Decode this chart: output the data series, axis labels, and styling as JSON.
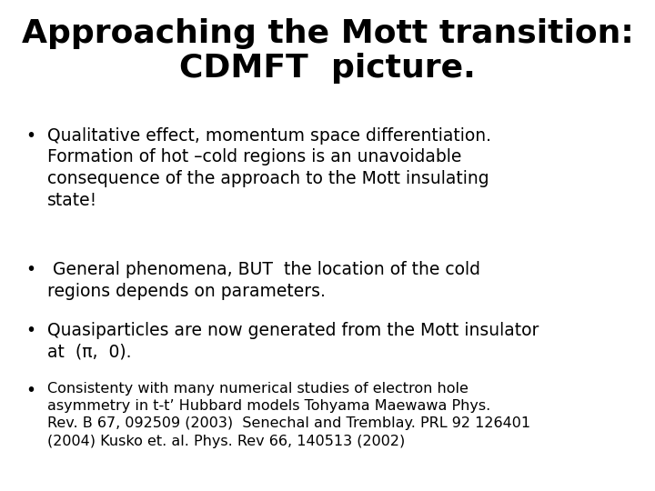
{
  "title_line1": "Approaching the Mott transition:",
  "title_line2": "CDMFT  picture.",
  "bullet1_main": "Qualitative effect, momentum space differentiation.\nFormation of hot –cold regions is an unavoidable\nconsequence of the approach to the Mott insulating\nstate!",
  "bullet2_main": " General phenomena, BUT  the location of the cold\nregions depends on parameters.",
  "bullet3_main": "Quasiparticles are now generated from the Mott insulator\nat  (π,  0).",
  "bullet4_line1": "Consistenty with many numerical studies of electron hole",
  "bullet4_line2": "asymmetry in t-t’ Hubbard models ",
  "bullet4_ref1": "Tohyama Maewawa Phys.",
  "bullet4_ref2": "Rev. B 67, 092509 (2003)  Senechal and Tremblay. PRL 92 126401",
  "bullet4_ref3": "(2004) Kusko et. al. Phys. Rev 66, 140513 (2002)",
  "background_color": "#ffffff",
  "text_color": "#000000",
  "title_fontsize": 26,
  "bullet_fontsize": 13.5,
  "ref_fontsize": 11.5
}
